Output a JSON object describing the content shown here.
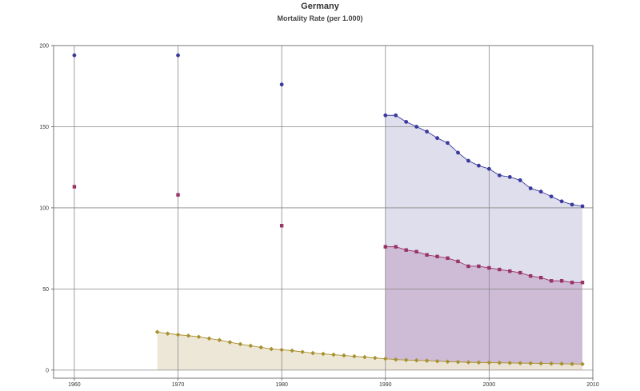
{
  "chart_data": {
    "type": "scatter",
    "title": "Germany",
    "subtitle": "Mortality Rate (per 1.000)",
    "xlim": [
      1958,
      2010
    ],
    "ylim": [
      -5,
      200
    ],
    "x_ticks": [
      1960,
      1970,
      1980,
      1990,
      2000,
      2010
    ],
    "y_ticks": [
      0,
      50,
      100,
      150,
      200
    ],
    "grid": true,
    "colors": {
      "under5": "#3a3a9e",
      "infant": "#993366",
      "neonatal": "#a8902e"
    },
    "fill_colors": {
      "under5": "#dcdcec",
      "infant": "#ccb8d4",
      "neonatal": "#ece6d6"
    },
    "series": [
      {
        "marker": "circle",
        "sparse_x": [
          1960,
          1970,
          1980
        ],
        "sparse_y": [
          194,
          194,
          176
        ],
        "x": [
          1990,
          1991,
          1992,
          1993,
          1994,
          1995,
          1996,
          1997,
          1998,
          1999,
          2000,
          2001,
          2002,
          2003,
          2004,
          2005,
          2006,
          2007,
          2008,
          2009
        ],
        "y": [
          157,
          157,
          153,
          150,
          147,
          143,
          140,
          134,
          129,
          126,
          124,
          120,
          119,
          117,
          112,
          110,
          107,
          104,
          102,
          101
        ]
      },
      {
        "marker": "square",
        "sparse_x": [
          1960,
          1970,
          1980
        ],
        "sparse_y": [
          113,
          108,
          89
        ],
        "x": [
          1990,
          1991,
          1992,
          1993,
          1994,
          1995,
          1996,
          1997,
          1998,
          1999,
          2000,
          2001,
          2002,
          2003,
          2004,
          2005,
          2006,
          2007,
          2008,
          2009
        ],
        "y": [
          76,
          76,
          74,
          73,
          71,
          70,
          69,
          67,
          64,
          64,
          63,
          62,
          61,
          60,
          58,
          57,
          55,
          55,
          54,
          54
        ]
      },
      {
        "marker": "diamond",
        "sparse_x": [],
        "sparse_y": [],
        "x": [
          1968,
          1969,
          1970,
          1971,
          1972,
          1973,
          1974,
          1975,
          1976,
          1977,
          1978,
          1979,
          1980,
          1981,
          1982,
          1983,
          1984,
          1985,
          1986,
          1987,
          1988,
          1989,
          1990,
          1991,
          1992,
          1993,
          1994,
          1995,
          1996,
          1997,
          1998,
          1999,
          2000,
          2001,
          2002,
          2003,
          2004,
          2005,
          2006,
          2007,
          2008,
          2009
        ],
        "y": [
          23.5,
          22.5,
          21.8,
          21.2,
          20.5,
          19.5,
          18.5,
          17.2,
          16,
          15,
          14,
          13,
          12.5,
          12,
          11.2,
          10.5,
          10,
          9.5,
          9,
          8.5,
          8,
          7.5,
          7,
          6.5,
          6.2,
          6,
          5.8,
          5.5,
          5.2,
          5,
          4.8,
          4.7,
          4.6,
          4.5,
          4.4,
          4.3,
          4.2,
          4.1,
          4,
          3.9,
          3.8,
          3.7
        ]
      }
    ]
  }
}
